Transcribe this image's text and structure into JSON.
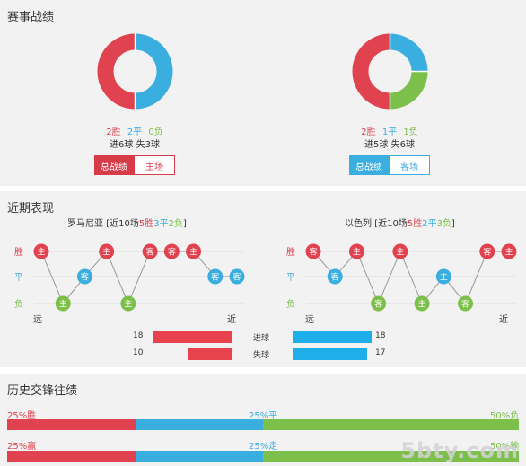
{
  "match_record": {
    "title": "赛事战绩",
    "home": {
      "chart": {
        "win": 2,
        "draw": 2,
        "loss": 0
      },
      "win": "2胜",
      "draw": "2平",
      "loss": "0负",
      "goals_for": "进6球",
      "goals_against": "失3球",
      "tab_all": "总战绩",
      "tab_venue": "主场"
    },
    "away": {
      "chart": {
        "win": 2,
        "draw": 1,
        "loss": 1
      },
      "win": "2胜",
      "draw": "1平",
      "loss": "1负",
      "goals_for": "进5球",
      "goals_against": "失6球",
      "tab_all": "总战绩",
      "tab_venue": "客场"
    }
  },
  "recent_form": {
    "title": "近期表现",
    "row_win": "胜",
    "row_draw": "平",
    "row_loss": "负",
    "far_label": "远",
    "near_label": "近",
    "home": {
      "team": "罗马尼亚",
      "prefix": "[近10场",
      "wins": "5胜",
      "draws": "3平",
      "losses": "2负",
      "suffix": "]",
      "games": [
        {
          "result": "W",
          "venue": "主"
        },
        {
          "result": "L",
          "venue": "主"
        },
        {
          "result": "D",
          "venue": "客"
        },
        {
          "result": "W",
          "venue": "主"
        },
        {
          "result": "L",
          "venue": "主"
        },
        {
          "result": "W",
          "venue": "客"
        },
        {
          "result": "W",
          "venue": "客"
        },
        {
          "result": "W",
          "venue": "主"
        },
        {
          "result": "D",
          "venue": "客"
        },
        {
          "result": "D",
          "venue": "客"
        }
      ],
      "goals_for": 18,
      "goals_against": 10
    },
    "away": {
      "team": "以色列",
      "prefix": "[近10场",
      "wins": "5胜",
      "draws": "2平",
      "losses": "3负",
      "suffix": "]",
      "games": [
        {
          "result": "W",
          "venue": "客"
        },
        {
          "result": "D",
          "venue": "客"
        },
        {
          "result": "W",
          "venue": "主"
        },
        {
          "result": "L",
          "venue": "客"
        },
        {
          "result": "W",
          "venue": "主"
        },
        {
          "result": "L",
          "venue": "主"
        },
        {
          "result": "D",
          "venue": "主"
        },
        {
          "result": "L",
          "venue": "客"
        },
        {
          "result": "W",
          "venue": "客"
        },
        {
          "result": "W",
          "venue": "主"
        }
      ],
      "goals_for": 18,
      "goals_against": 17
    },
    "goals_for_label": "进球",
    "goals_against_label": "失球"
  },
  "history": {
    "title": "历史交锋往绩",
    "row1": {
      "left": "25%胜",
      "mid": "25%平",
      "right": "50%负",
      "segments": [
        0.25,
        0.25,
        0.5
      ]
    },
    "row2": {
      "left": "25%赢",
      "mid": "25%走",
      "right": "50%输",
      "segments": [
        0.25,
        0.25,
        0.5
      ]
    }
  },
  "colors": {
    "win": "#e0424f",
    "draw": "#3aaedf",
    "loss": "#7cbf4a"
  },
  "watermark": "5bty.com"
}
